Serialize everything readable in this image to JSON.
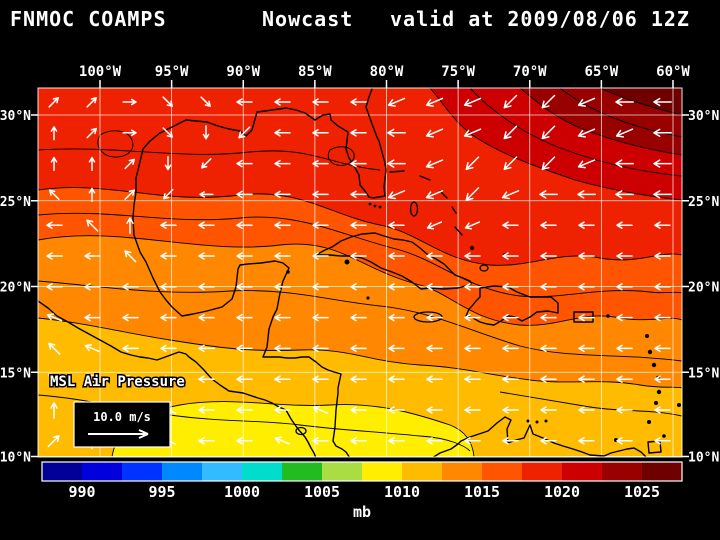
{
  "header": {
    "model": "FNMOC COAMPS",
    "product": "Nowcast",
    "valid": "valid at 2009/08/06 12Z"
  },
  "map": {
    "field_label": "MSL Air Pressure",
    "lon_labels": [
      "100°W",
      "95°W",
      "90°W",
      "85°W",
      "80°W",
      "75°W",
      "70°W",
      "65°W",
      "60°W"
    ],
    "lat_labels": [
      "30°N",
      "25°N",
      "20°N",
      "15°N",
      "10°N"
    ]
  },
  "wind_legend": {
    "speed_label": "10.0 m/s"
  },
  "colorbar": {
    "unit": "mb",
    "tick_labels": [
      "990",
      "995",
      "1000",
      "1005",
      "1010",
      "1015",
      "1020",
      "1025"
    ],
    "segment_colors": [
      "#000099",
      "#0000dd",
      "#0033ff",
      "#0088ff",
      "#33bbff",
      "#00ddcc",
      "#22bb22",
      "#aadd44",
      "#ffee00",
      "#ffbb00",
      "#ff8800",
      "#ff5500",
      "#ee2200",
      "#cc0000",
      "#990000",
      "#6e0000"
    ],
    "range_mb": [
      987.5,
      1027.5
    ],
    "segment_step_mb": 2.5
  },
  "pressure_regions": [
    {
      "name": "base",
      "seg": 10,
      "approx_mb": "1012.5-1015"
    },
    {
      "name": "south_band",
      "seg": 9,
      "approx_mb": "1010-1012.5"
    },
    {
      "name": "south_core",
      "seg": 8,
      "approx_mb": "1007.5-1010"
    },
    {
      "name": "upper_mid",
      "seg": 11,
      "approx_mb": "1015-1017.5"
    },
    {
      "name": "north",
      "seg": 12,
      "approx_mb": "1017.5-1020"
    },
    {
      "name": "ne_outer",
      "seg": 13,
      "approx_mb": "1020-1022.5"
    },
    {
      "name": "ne_mid",
      "seg": 14,
      "approx_mb": "1022.5-1025"
    },
    {
      "name": "ne_core",
      "seg": 15,
      "approx_mb": "1025-1027.5"
    }
  ],
  "wind_field": {
    "compass_rows": [
      [
        "NE",
        "NE",
        "E",
        "SE",
        "SE",
        "W",
        "W",
        "W",
        "W",
        "WSW",
        "WSW",
        "WSW",
        "SW",
        "SW",
        "WSW",
        "W",
        "W"
      ],
      [
        "N",
        "NE",
        "E",
        "SE",
        "S",
        "SW",
        "W",
        "W",
        "W",
        "W",
        "WSW",
        "WSW",
        "SW",
        "SW",
        "WSW",
        "WSW",
        "W"
      ],
      [
        "N",
        "N",
        "NE",
        "S",
        "SW",
        "W",
        "W",
        "W",
        "W",
        "W",
        "WSW",
        "SW",
        "SW",
        "SW",
        "WSW",
        "W",
        "W"
      ],
      [
        "NW",
        "N",
        "NE",
        "SW",
        "W",
        "W",
        "W",
        "W",
        "W",
        "WSW",
        "WSW",
        "SW",
        "WSW",
        "W",
        "W",
        "W",
        "W"
      ],
      [
        "W",
        "NW",
        "N",
        "W",
        "W",
        "W",
        "W",
        "W",
        "W",
        "W",
        "WSW",
        "WSW",
        "W",
        "W",
        "W",
        "W",
        "W"
      ],
      [
        "W",
        "W",
        "NW",
        "W",
        "W",
        "W",
        "W",
        "W",
        "W",
        "W",
        "W",
        "W",
        "W",
        "W",
        "W",
        "W",
        "W"
      ],
      [
        "W",
        "W",
        "W",
        "W",
        "W",
        "W",
        "W",
        "W",
        "W",
        "W",
        "W",
        "W",
        "W",
        "W",
        "W",
        "W",
        "W"
      ],
      [
        "WNW",
        "W",
        "W",
        "W",
        "W",
        "W",
        "W",
        "W",
        "W",
        "W",
        "W",
        "W",
        "W",
        "W",
        "W",
        "W",
        "W"
      ],
      [
        "NW",
        "WNW",
        "W",
        "W",
        "W",
        "W",
        "W",
        "W",
        "W",
        "W",
        "W",
        "W",
        "W",
        "W",
        "W",
        "W",
        "W"
      ],
      [
        "NW",
        "NW",
        "WNW",
        "W",
        "W",
        "W",
        "W",
        "W",
        "W",
        "W",
        "W",
        "W",
        "W",
        "W",
        "W",
        "W",
        "W"
      ],
      [
        "N",
        "NW",
        "NW",
        "WNW",
        "W",
        "W",
        "W",
        "WNW",
        "W",
        "W",
        "W",
        "W",
        "W",
        "W",
        "W",
        "W",
        "W"
      ],
      [
        "NE",
        "N",
        "NW",
        "WNW",
        "W",
        "W",
        "WNW",
        "W",
        "W",
        "W",
        "W",
        "W",
        "W",
        "W",
        "W",
        "W",
        "W"
      ]
    ]
  },
  "colors": {
    "background": "#000000",
    "text": "#ffffff",
    "grid": "#ffffff",
    "coastline": "#000000",
    "wind_arrow": "#ffffff"
  }
}
